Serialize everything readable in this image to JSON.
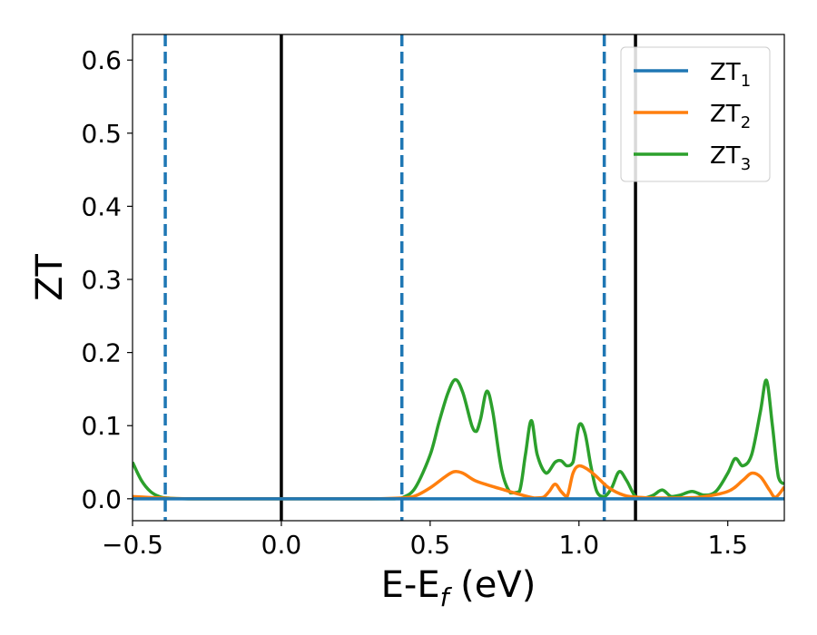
{
  "chart_data": {
    "type": "line",
    "xlabel": "E-E_f (eV)",
    "ylabel": "ZT",
    "xlim": [
      -0.5,
      1.69
    ],
    "ylim": [
      -0.03,
      0.635
    ],
    "xticks": [
      -0.5,
      0.0,
      0.5,
      1.0,
      1.5
    ],
    "xtick_labels": [
      "−0.5",
      "0.0",
      "0.5",
      "1.0",
      "1.5"
    ],
    "yticks": [
      0.0,
      0.1,
      0.2,
      0.3,
      0.4,
      0.5,
      0.6
    ],
    "ytick_labels": [
      "0.0",
      "0.1",
      "0.2",
      "0.3",
      "0.4",
      "0.5",
      "0.6"
    ],
    "legend_position": "top-right",
    "grid": false,
    "vertical_lines": [
      {
        "x": -0.39,
        "style": "dashed",
        "color": "#1f77b4"
      },
      {
        "x": 0.0,
        "style": "solid",
        "color": "#000000"
      },
      {
        "x": 0.405,
        "style": "dashed",
        "color": "#1f77b4"
      },
      {
        "x": 1.085,
        "style": "dashed",
        "color": "#1f77b4"
      },
      {
        "x": 1.19,
        "style": "solid",
        "color": "#000000"
      }
    ],
    "series": [
      {
        "name": "ZT1",
        "label_main": "ZT",
        "label_sub": "1",
        "color": "#1f77b4",
        "x": [
          -0.5,
          1.69
        ],
        "y": [
          0.0,
          0.0
        ]
      },
      {
        "name": "ZT2",
        "label_main": "ZT",
        "label_sub": "2",
        "color": "#ff7f0e",
        "x": [
          -0.5,
          -0.45,
          -0.4,
          -0.3,
          0.0,
          0.3,
          0.4,
          0.45,
          0.5,
          0.55,
          0.58,
          0.61,
          0.65,
          0.7,
          0.75,
          0.8,
          0.85,
          0.88,
          0.9,
          0.92,
          0.94,
          0.96,
          0.98,
          1.0,
          1.03,
          1.06,
          1.1,
          1.15,
          1.2,
          1.3,
          1.4,
          1.5,
          1.55,
          1.58,
          1.61,
          1.64,
          1.66,
          1.69
        ],
        "y": [
          0.003,
          0.002,
          0.001,
          0.0,
          0.0,
          0.0,
          0.001,
          0.004,
          0.015,
          0.03,
          0.037,
          0.035,
          0.025,
          0.018,
          0.012,
          0.006,
          0.001,
          0.002,
          0.01,
          0.02,
          0.01,
          0.003,
          0.035,
          0.045,
          0.04,
          0.03,
          0.015,
          0.005,
          0.002,
          0.001,
          0.002,
          0.01,
          0.025,
          0.035,
          0.03,
          0.012,
          0.002,
          0.016
        ]
      },
      {
        "name": "ZT3",
        "label_main": "ZT",
        "label_sub": "3",
        "color": "#2ca02c",
        "x": [
          -0.5,
          -0.47,
          -0.44,
          -0.41,
          -0.38,
          -0.3,
          0.0,
          0.3,
          0.38,
          0.41,
          0.45,
          0.5,
          0.53,
          0.56,
          0.585,
          0.61,
          0.64,
          0.655,
          0.67,
          0.69,
          0.71,
          0.74,
          0.77,
          0.8,
          0.82,
          0.84,
          0.86,
          0.89,
          0.92,
          0.94,
          0.96,
          0.98,
          1.0,
          1.02,
          1.04,
          1.06,
          1.085,
          1.11,
          1.135,
          1.16,
          1.19,
          1.22,
          1.25,
          1.28,
          1.31,
          1.34,
          1.38,
          1.42,
          1.46,
          1.5,
          1.525,
          1.55,
          1.58,
          1.61,
          1.63,
          1.65,
          1.67,
          1.69
        ],
        "y": [
          0.05,
          0.025,
          0.01,
          0.003,
          0.001,
          0.0,
          0.0,
          0.0,
          0.0,
          0.002,
          0.015,
          0.06,
          0.105,
          0.145,
          0.163,
          0.145,
          0.1,
          0.092,
          0.11,
          0.147,
          0.12,
          0.04,
          0.008,
          0.01,
          0.06,
          0.107,
          0.06,
          0.035,
          0.05,
          0.052,
          0.045,
          0.05,
          0.1,
          0.09,
          0.045,
          0.01,
          0.003,
          0.015,
          0.037,
          0.025,
          0.003,
          0.001,
          0.005,
          0.012,
          0.003,
          0.005,
          0.01,
          0.005,
          0.01,
          0.035,
          0.055,
          0.045,
          0.06,
          0.12,
          0.162,
          0.1,
          0.03,
          0.02
        ]
      }
    ]
  }
}
